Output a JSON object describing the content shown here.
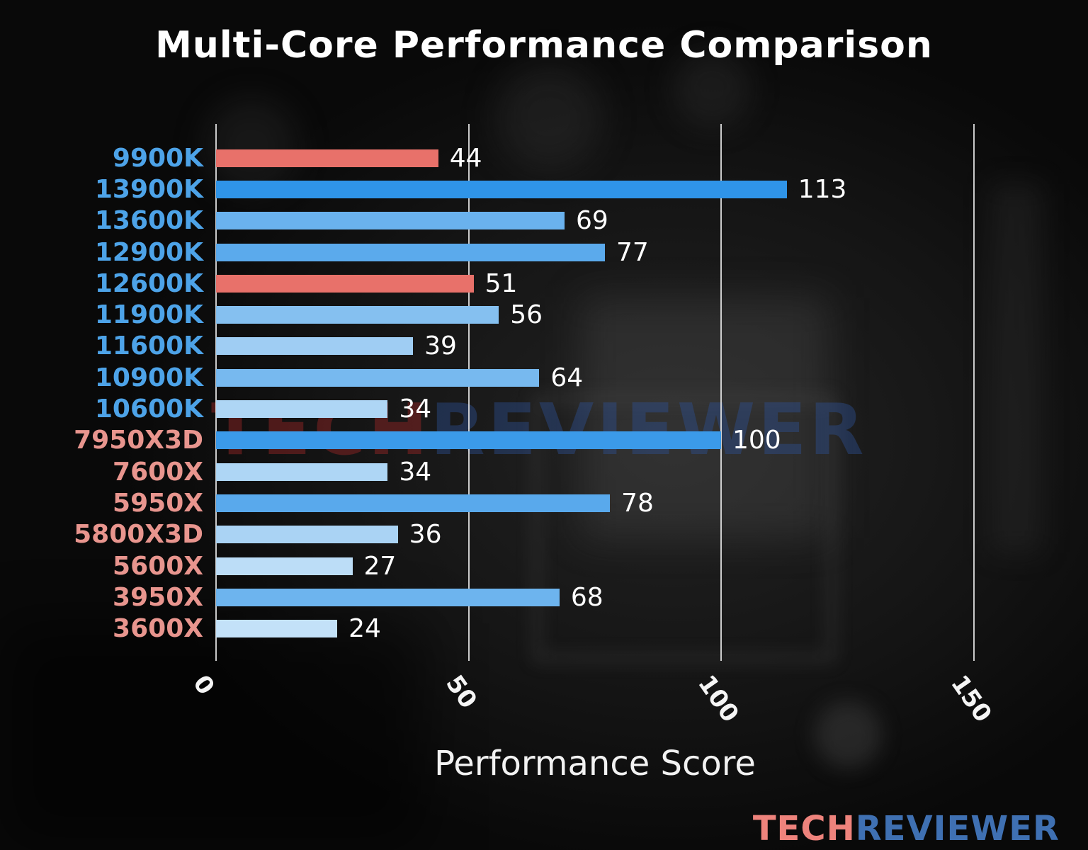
{
  "chart_data": {
    "type": "bar",
    "orientation": "horizontal",
    "title": "Multi-Core Performance Comparison",
    "xlabel": "Performance Score",
    "xlim": [
      0,
      160
    ],
    "xticks": [
      0,
      50,
      100,
      150
    ],
    "grid": true,
    "legend": false,
    "categories": [
      "9900K",
      "13900K",
      "13600K",
      "12900K",
      "12600K",
      "11900K",
      "11600K",
      "10900K",
      "10600K",
      "7950X3D",
      "7600X",
      "5950X",
      "5800X3D",
      "5600X",
      "3950X",
      "3600X"
    ],
    "values": [
      44,
      113,
      69,
      77,
      51,
      56,
      39,
      64,
      34,
      100,
      34,
      78,
      36,
      27,
      68,
      24
    ],
    "bar_colors": [
      "#e8716a",
      "#2f94e8",
      "#6ab2ee",
      "#5baaec",
      "#e8716a",
      "#85c0f0",
      "#9fcdf3",
      "#77b9ef",
      "#aed6f5",
      "#3b9ae9",
      "#aed6f5",
      "#59a9ec",
      "#aad3f4",
      "#bcddf7",
      "#6db4ee",
      "#c3e1f8"
    ],
    "label_colors": [
      "#4da3e8",
      "#4da3e8",
      "#4da3e8",
      "#4da3e8",
      "#4da3e8",
      "#4da3e8",
      "#4da3e8",
      "#4da3e8",
      "#4da3e8",
      "#e8958e",
      "#e8958e",
      "#e8958e",
      "#e8958e",
      "#e8958e",
      "#e8958e",
      "#e8958e"
    ],
    "value_label_color": "#ffffff"
  },
  "watermark": {
    "part1": "TECH",
    "part2": "REVIEWER"
  },
  "logo": {
    "part1": "TECH",
    "part2": "REVIEWER"
  }
}
